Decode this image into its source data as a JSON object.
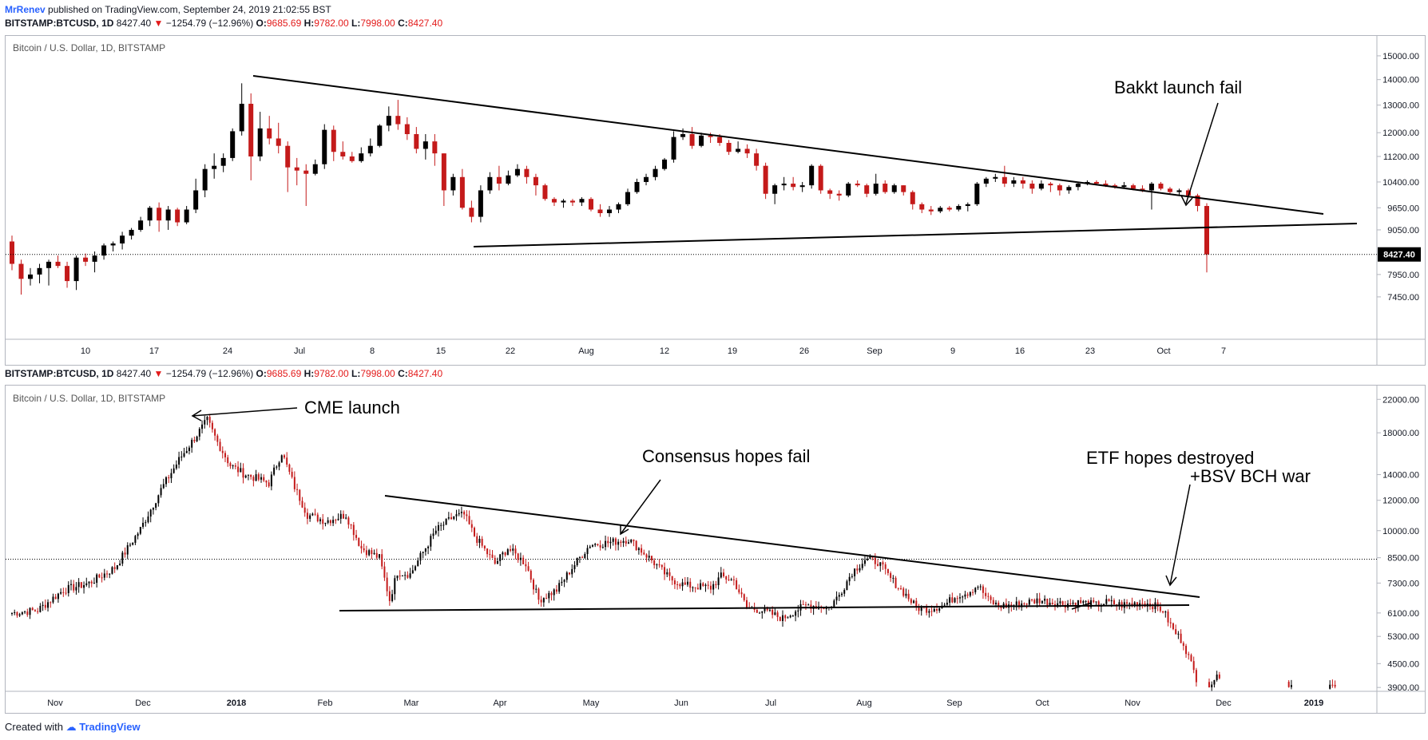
{
  "header": {
    "author": "MrRenev",
    "published": "published on TradingView.com, September 24, 2019 21:02:55 BST"
  },
  "colors": {
    "up": "#000000",
    "down": "#c41a1a",
    "grid_border": "#b2b5be",
    "axis_text": "#131722",
    "accent": "#2962ff"
  },
  "chart_data": [
    {
      "type": "candlestick",
      "ticker_line": {
        "symbol": "BITSTAMP:BTCUSD, 1D",
        "last": "8427.40",
        "change": "−1254.79 (−12.96%)",
        "o_label": "O:",
        "o": "9685.69",
        "h_label": "H:",
        "h": "9782.00",
        "l_label": "L:",
        "l": "7998.00",
        "c_label": "C:",
        "c": "8427.40"
      },
      "title": "Bitcoin / U.S. Dollar, 1D, BITSTAMP",
      "y_scale": "log",
      "ylim": [
        6900,
        15600
      ],
      "y_ticks": [
        "15000.00",
        "14000.00",
        "13000.00",
        "12000.00",
        "11200.00",
        "10400.00",
        "9650.00",
        "9050.00",
        "7950.00",
        "7450.00"
      ],
      "x_ticks": [
        "10",
        "17",
        "24",
        "Jul",
        "8",
        "15",
        "22",
        "Aug",
        "12",
        "19",
        "26",
        "Sep",
        "9",
        "16",
        "23",
        "Oct",
        "7"
      ],
      "last_price_label": "8427.40",
      "last_price": 8427.4,
      "candles_ohlc": [
        [
          8750,
          8900,
          8050,
          8200
        ],
        [
          8200,
          8300,
          7500,
          7850
        ],
        [
          7850,
          8100,
          7700,
          7950
        ],
        [
          7950,
          8200,
          7750,
          8100
        ],
        [
          8100,
          8300,
          7700,
          8250
        ],
        [
          8250,
          8400,
          8100,
          8150
        ],
        [
          8150,
          8250,
          7650,
          7800
        ],
        [
          7800,
          8400,
          7600,
          8350
        ],
        [
          8350,
          8450,
          8150,
          8250
        ],
        [
          8250,
          8500,
          8000,
          8400
        ],
        [
          8400,
          8700,
          8300,
          8650
        ],
        [
          8650,
          8750,
          8500,
          8700
        ],
        [
          8700,
          9000,
          8550,
          8900
        ],
        [
          8900,
          9100,
          8800,
          9050
        ],
        [
          9050,
          9400,
          9000,
          9300
        ],
        [
          9300,
          9700,
          9150,
          9650
        ],
        [
          9650,
          9800,
          9000,
          9300
        ],
        [
          9300,
          9700,
          9050,
          9600
        ],
        [
          9600,
          9650,
          9150,
          9250
        ],
        [
          9250,
          9700,
          9200,
          9600
        ],
        [
          9600,
          10500,
          9500,
          10150
        ],
        [
          10150,
          10950,
          9950,
          10800
        ],
        [
          10800,
          11300,
          10500,
          10900
        ],
        [
          10900,
          11300,
          10700,
          11150
        ],
        [
          11150,
          12150,
          11050,
          12050
        ],
        [
          12050,
          13850,
          11900,
          13050
        ],
        [
          13050,
          13450,
          10450,
          11200
        ],
        [
          11200,
          12750,
          11050,
          12150
        ],
        [
          12150,
          12600,
          11600,
          11800
        ],
        [
          11800,
          12350,
          11300,
          11550
        ],
        [
          11550,
          11700,
          10100,
          10850
        ],
        [
          10850,
          11150,
          10300,
          10750
        ],
        [
          10750,
          10950,
          9700,
          10650
        ],
        [
          10650,
          11100,
          10600,
          10950
        ],
        [
          10950,
          12300,
          10800,
          12100
        ],
        [
          12100,
          12250,
          11050,
          11350
        ],
        [
          11350,
          11700,
          11100,
          11200
        ],
        [
          11200,
          11350,
          11000,
          11050
        ],
        [
          11050,
          11500,
          11000,
          11300
        ],
        [
          11300,
          11800,
          11200,
          11550
        ],
        [
          11550,
          12300,
          11500,
          12250
        ],
        [
          12250,
          12950,
          12050,
          12600
        ],
        [
          12600,
          13200,
          12100,
          12300
        ],
        [
          12300,
          12550,
          11750,
          11950
        ],
        [
          11950,
          12200,
          11300,
          11450
        ],
        [
          11450,
          11950,
          11100,
          11700
        ],
        [
          11700,
          11950,
          10900,
          11300
        ],
        [
          11300,
          11300,
          9700,
          10150
        ],
        [
          10150,
          10650,
          10000,
          10550
        ],
        [
          10550,
          10800,
          9600,
          9650
        ],
        [
          9650,
          9850,
          9250,
          9400
        ],
        [
          9400,
          10300,
          9250,
          10150
        ],
        [
          10150,
          10700,
          10050,
          10550
        ],
        [
          10550,
          10900,
          10150,
          10350
        ],
        [
          10350,
          10750,
          10300,
          10600
        ],
        [
          10600,
          10950,
          10550,
          10800
        ],
        [
          10800,
          10900,
          10350,
          10550
        ],
        [
          10550,
          10650,
          10000,
          10300
        ],
        [
          10300,
          10350,
          9850,
          9900
        ],
        [
          9900,
          9950,
          9700,
          9800
        ],
        [
          9800,
          9900,
          9650,
          9850
        ],
        [
          9850,
          9900,
          9700,
          9800
        ],
        [
          9800,
          9950,
          9700,
          9900
        ],
        [
          9900,
          9950,
          9550,
          9600
        ],
        [
          9600,
          9750,
          9400,
          9500
        ],
        [
          9500,
          9700,
          9400,
          9600
        ],
        [
          9600,
          9800,
          9500,
          9750
        ],
        [
          9750,
          10200,
          9700,
          10100
        ],
        [
          10100,
          10500,
          10050,
          10400
        ],
        [
          10400,
          10650,
          10300,
          10550
        ],
        [
          10550,
          10900,
          10450,
          10800
        ],
        [
          10800,
          11150,
          10750,
          11100
        ],
        [
          11100,
          12050,
          11000,
          11850
        ],
        [
          11850,
          12150,
          11750,
          11950
        ],
        [
          11950,
          12200,
          11450,
          11550
        ],
        [
          11550,
          12000,
          11500,
          11900
        ],
        [
          11900,
          12000,
          11650,
          11850
        ],
        [
          11850,
          11950,
          11550,
          11650
        ],
        [
          11650,
          11750,
          11250,
          11350
        ],
        [
          11350,
          11700,
          11300,
          11450
        ],
        [
          11450,
          11600,
          11150,
          11300
        ],
        [
          11300,
          11450,
          10750,
          10900
        ],
        [
          10900,
          11000,
          9900,
          10050
        ],
        [
          10050,
          10350,
          9750,
          10300
        ],
        [
          10300,
          10550,
          10150,
          10350
        ],
        [
          10350,
          10550,
          10150,
          10250
        ],
        [
          10250,
          10400,
          10100,
          10300
        ],
        [
          10300,
          10950,
          10200,
          10900
        ],
        [
          10900,
          10950,
          10050,
          10150
        ],
        [
          10150,
          10200,
          9900,
          10050
        ],
        [
          10050,
          10150,
          9850,
          10000
        ],
        [
          10000,
          10400,
          9950,
          10350
        ],
        [
          10350,
          10450,
          10250,
          10300
        ],
        [
          10300,
          10350,
          9950,
          10050
        ],
        [
          10050,
          10650,
          10000,
          10350
        ],
        [
          10350,
          10450,
          10050,
          10100
        ],
        [
          10100,
          10350,
          10050,
          10300
        ],
        [
          10300,
          10300,
          10000,
          10100
        ],
        [
          10100,
          10150,
          9600,
          9750
        ],
        [
          9750,
          9800,
          9500,
          9600
        ],
        [
          9600,
          9700,
          9450,
          9550
        ],
        [
          9550,
          9700,
          9500,
          9650
        ],
        [
          9650,
          9700,
          9550,
          9600
        ],
        [
          9600,
          9750,
          9550,
          9700
        ],
        [
          9700,
          9800,
          9550,
          9750
        ],
        [
          9750,
          10400,
          9700,
          10350
        ],
        [
          10350,
          10550,
          10250,
          10500
        ],
        [
          10500,
          10650,
          10400,
          10550
        ],
        [
          10550,
          10900,
          10250,
          10350
        ],
        [
          10350,
          10550,
          10250,
          10450
        ],
        [
          10450,
          10550,
          10200,
          10350
        ],
        [
          10350,
          10450,
          10050,
          10200
        ],
        [
          10200,
          10450,
          10150,
          10350
        ],
        [
          10350,
          10400,
          10100,
          10300
        ],
        [
          10300,
          10350,
          10000,
          10150
        ],
        [
          10150,
          10300,
          10050,
          10250
        ],
        [
          10250,
          10400,
          10150,
          10350
        ],
        [
          10350,
          10450,
          10300,
          10400
        ],
        [
          10400,
          10450,
          10300,
          10350
        ],
        [
          10350,
          10450,
          10250,
          10300
        ],
        [
          10300,
          10350,
          10200,
          10250
        ],
        [
          10250,
          10400,
          10200,
          10300
        ],
        [
          10300,
          10350,
          10150,
          10200
        ],
        [
          10200,
          10300,
          10100,
          10150
        ],
        [
          10150,
          10400,
          9600,
          10350
        ],
        [
          10350,
          10400,
          10150,
          10200
        ],
        [
          10200,
          10250,
          10050,
          10100
        ],
        [
          10100,
          10200,
          10000,
          10150
        ],
        [
          10150,
          10200,
          9950,
          10000
        ],
        [
          10000,
          10050,
          9550,
          9700
        ],
        [
          9700,
          9780,
          7998,
          8427.4
        ]
      ]
    },
    {
      "type": "candlestick",
      "ticker_line": {
        "symbol": "BITSTAMP:BTCUSD, 1D",
        "last": "8427.40",
        "change": "−1254.79 (−12.96%)",
        "o_label": "O:",
        "o": "9685.69",
        "h_label": "H:",
        "h": "9782.00",
        "l_label": "L:",
        "l": "7998.00",
        "c_label": "C:",
        "c": "8427.40"
      },
      "title": "Bitcoin / U.S. Dollar, 1D, BITSTAMP",
      "y_scale": "log",
      "ylim": [
        3650,
        23000
      ],
      "y_ticks": [
        "22000.00",
        "18000.00",
        "14000.00",
        "12000.00",
        "10000.00",
        "8500.00",
        "7300.00",
        "6100.00",
        "5300.00",
        "4500.00",
        "3900.00"
      ],
      "x_ticks": [
        "Nov",
        "Dec",
        "2018",
        "Feb",
        "Mar",
        "Apr",
        "May",
        "Jun",
        "Jul",
        "Aug",
        "Sep",
        "Oct",
        "Nov",
        "Dec",
        "2019"
      ],
      "reference_price": 8427.4,
      "close_anchors": [
        [
          0,
          6100
        ],
        [
          10,
          6200
        ],
        [
          20,
          7000
        ],
        [
          30,
          7300
        ],
        [
          40,
          8000
        ],
        [
          50,
          10100
        ],
        [
          58,
          12800
        ],
        [
          65,
          15300
        ],
        [
          72,
          17800
        ],
        [
          76,
          19400
        ],
        [
          80,
          17000
        ],
        [
          85,
          14800
        ],
        [
          90,
          14100
        ],
        [
          100,
          13300
        ],
        [
          105,
          16000
        ],
        [
          110,
          13000
        ],
        [
          115,
          11000
        ],
        [
          122,
          10600
        ],
        [
          130,
          11000
        ],
        [
          136,
          9000
        ],
        [
          143,
          8500
        ],
        [
          147,
          6600
        ],
        [
          150,
          7800
        ],
        [
          155,
          7700
        ],
        [
          160,
          8800
        ],
        [
          165,
          10000
        ],
        [
          172,
          10900
        ],
        [
          176,
          11000
        ],
        [
          180,
          9700
        ],
        [
          188,
          8200
        ],
        [
          193,
          9000
        ],
        [
          200,
          8200
        ],
        [
          205,
          6600
        ],
        [
          212,
          7000
        ],
        [
          218,
          8000
        ],
        [
          225,
          9200
        ],
        [
          232,
          9300
        ],
        [
          240,
          9500
        ],
        [
          248,
          8500
        ],
        [
          256,
          7500
        ],
        [
          262,
          7200
        ],
        [
          272,
          7100
        ],
        [
          276,
          7600
        ],
        [
          281,
          7400
        ],
        [
          286,
          6300
        ],
        [
          292,
          6200
        ],
        [
          300,
          5900
        ],
        [
          305,
          6200
        ],
        [
          310,
          6400
        ],
        [
          318,
          6300
        ],
        [
          322,
          6800
        ],
        [
          327,
          7800
        ],
        [
          332,
          8400
        ],
        [
          337,
          8300
        ],
        [
          342,
          7500
        ],
        [
          348,
          6800
        ],
        [
          352,
          6300
        ],
        [
          357,
          6250
        ],
        [
          363,
          6400
        ],
        [
          368,
          6800
        ],
        [
          372,
          6900
        ],
        [
          376,
          7200
        ],
        [
          380,
          6600
        ],
        [
          384,
          6350
        ],
        [
          390,
          6400
        ],
        [
          395,
          6500
        ],
        [
          400,
          6600
        ],
        [
          405,
          6500
        ],
        [
          410,
          6450
        ],
        [
          416,
          6500
        ],
        [
          422,
          6400
        ],
        [
          426,
          6500
        ],
        [
          432,
          6400
        ],
        [
          436,
          6450
        ],
        [
          440,
          6500
        ],
        [
          444,
          6400
        ],
        [
          448,
          6200
        ],
        [
          452,
          5500
        ],
        [
          456,
          5100
        ],
        [
          460,
          4300
        ],
        [
          463,
          3800
        ],
        [
          466,
          4000
        ],
        [
          469,
          4200
        ],
        [
          472,
          3900
        ],
        [
          476,
          3600
        ],
        [
          480,
          3400
        ],
        [
          486,
          3350
        ],
        [
          492,
          3600
        ],
        [
          496,
          4000
        ],
        [
          500,
          3800
        ],
        [
          505,
          3700
        ],
        [
          510,
          3850
        ],
        [
          514,
          3950
        ],
        [
          518,
          3600
        ],
        [
          522,
          3550
        ],
        [
          526,
          3500
        ]
      ],
      "annotations": [
        "CME launch",
        "Consensus hopes fail",
        "ETF hopes destroyed",
        "+BSV BCH war"
      ]
    }
  ],
  "annotations_top": [
    "Bakkt launch fail"
  ],
  "footer": {
    "created": "Created with",
    "brand": "TradingView"
  }
}
